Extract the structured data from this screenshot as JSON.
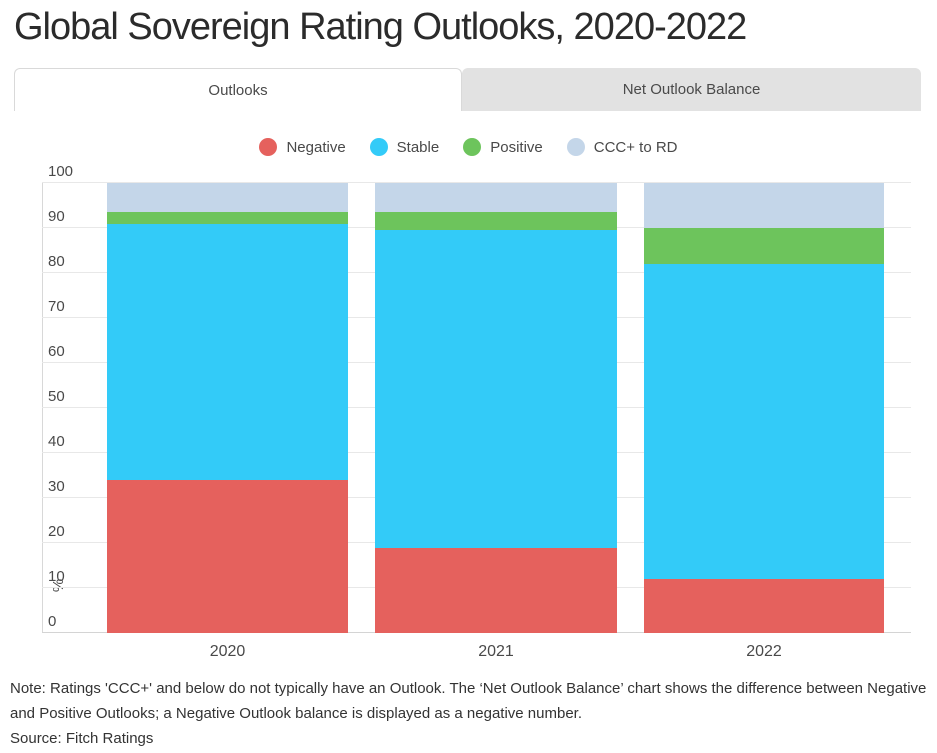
{
  "title": "Global Sovereign Rating Outlooks, 2020-2022",
  "tabs": [
    {
      "label": "Outlooks",
      "active": true
    },
    {
      "label": "Net Outlook Balance",
      "active": false
    }
  ],
  "legend": [
    {
      "label": "Negative",
      "color": "#e5615d"
    },
    {
      "label": "Stable",
      "color": "#33cbf8"
    },
    {
      "label": "Positive",
      "color": "#6dc45c"
    },
    {
      "label": "CCC+ to RD",
      "color": "#c4d6e9"
    }
  ],
  "chart_data": {
    "type": "bar",
    "stacked": true,
    "title": "Global Sovereign Rating Outlooks, 2020-2022",
    "categories": [
      "2020",
      "2021",
      "2022"
    ],
    "series": [
      {
        "name": "Negative",
        "color": "#e5615d",
        "values": [
          34,
          19,
          12
        ]
      },
      {
        "name": "Stable",
        "color": "#33cbf8",
        "values": [
          57,
          70.5,
          70
        ]
      },
      {
        "name": "Positive",
        "color": "#6dc45c",
        "values": [
          2.5,
          4,
          8
        ]
      },
      {
        "name": "CCC+ to RD",
        "color": "#c4d6e9",
        "values": [
          6.5,
          6.5,
          10
        ]
      }
    ],
    "xlabel": "",
    "ylabel": "%",
    "ylim": [
      0,
      100
    ],
    "yticks": [
      0,
      10,
      20,
      30,
      40,
      50,
      60,
      70,
      80,
      90,
      100
    ],
    "grid": true,
    "legend_position": "top"
  },
  "footer": {
    "note": "Note: Ratings 'CCC+' and below do not typically have an Outlook. The ‘Net Outlook Balance’ chart shows the difference between Negative and Positive Outlooks; a Negative Outlook balance is displayed as a negative number.",
    "source": "Source: Fitch Ratings"
  }
}
